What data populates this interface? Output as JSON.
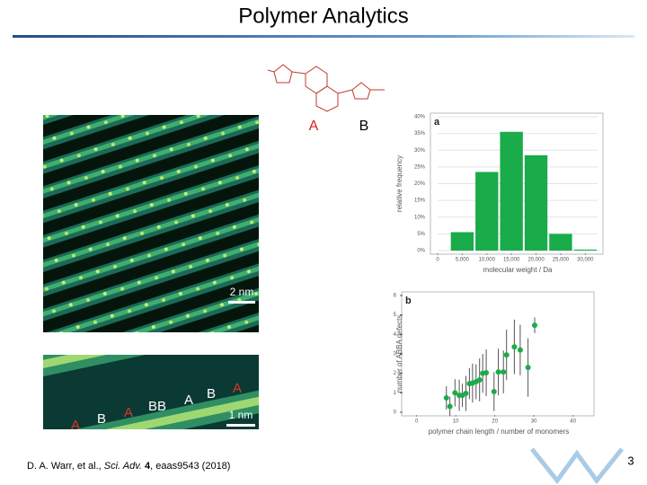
{
  "header": {
    "title": "Polymer Analytics"
  },
  "molecule": {
    "label_a": "A",
    "label_b": "B"
  },
  "images": {
    "upper": {
      "scale": "2 nm"
    },
    "lower": {
      "scale": "1 nm",
      "labels": [
        "A",
        "B",
        "A",
        "BB",
        "A",
        "B",
        "A"
      ]
    }
  },
  "citation": {
    "parts": [
      "D. A. Warr, et al., ",
      "Sci. Adv.",
      " 4",
      ", eaas9543 (2018)"
    ]
  },
  "page_number": "3",
  "chart_data": [
    {
      "type": "histogram",
      "panel": "a",
      "xlabel": "molecular weight / Da",
      "ylabel": "relative frequency",
      "color": "#1aab4b",
      "bins": [
        2500,
        7500,
        12500,
        17500,
        22500,
        27500,
        32500
      ],
      "values": [
        5.5,
        23.5,
        35.5,
        28.5,
        5,
        0.3
      ],
      "xlim": [
        0,
        32500
      ],
      "xticks": [
        0,
        {
          "value": 5000,
          "label": "5,000"
        },
        {
          "value": 10000,
          "label": "10,000"
        },
        {
          "value": 15000,
          "label": "15,000"
        },
        {
          "value": 20000,
          "label": "20,000"
        },
        {
          "value": 25000,
          "label": "25,000"
        },
        {
          "value": 30000,
          "label": "30,000"
        }
      ],
      "ylim": [
        0,
        40
      ],
      "yticks": [
        {
          "value": 0,
          "label": "0%"
        },
        {
          "value": 5,
          "label": "5%"
        },
        {
          "value": 10,
          "label": "10%"
        },
        {
          "value": 15,
          "label": "15%"
        },
        {
          "value": 20,
          "label": "20%"
        },
        {
          "value": 25,
          "label": "25%"
        },
        {
          "value": 30,
          "label": "30%"
        },
        {
          "value": 35,
          "label": "35%"
        },
        {
          "value": 40,
          "label": "40%"
        }
      ],
      "grid": true
    },
    {
      "type": "scatter",
      "panel": "b",
      "xlabel": "polymer chain length / number of monomers",
      "ylabel": "number of ABBA defects",
      "color": "#1aab4b",
      "x": [
        7.6,
        8.5,
        9.8,
        10.9,
        11.7,
        12.6,
        13.5,
        14.3,
        15.2,
        16.1,
        16.9,
        17.8,
        19.8,
        20.9,
        22.2,
        23,
        25,
        26.5,
        28.5,
        30.2
      ],
      "values": [
        0.74,
        0.3,
        1.0,
        0.87,
        0.87,
        0.97,
        1.47,
        1.5,
        1.57,
        1.66,
        2.0,
        2.03,
        1.06,
        2.07,
        2.07,
        2.95,
        3.36,
        3.2,
        2.3,
        4.47
      ],
      "errors": [
        0.6,
        0.5,
        0.7,
        0.8,
        0.6,
        0.9,
        0.8,
        1.0,
        0.9,
        1.1,
        1.0,
        1.2,
        1.0,
        1.2,
        1.1,
        1.3,
        1.4,
        1.3,
        1.5,
        0.4
      ],
      "xlim": [
        -2,
        44
      ],
      "xticks": [
        0,
        10,
        20,
        30,
        40
      ],
      "ylim": [
        0,
        6
      ],
      "yticks": [
        0,
        1,
        2,
        3,
        4,
        5,
        6
      ]
    }
  ]
}
